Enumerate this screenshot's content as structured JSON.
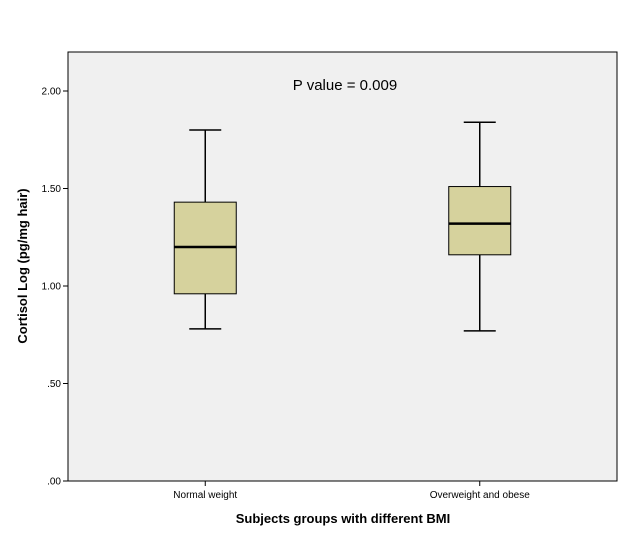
{
  "chart_data": {
    "type": "boxplot",
    "annotation": "P value = 0.009",
    "xlabel": "Subjects groups with different BMI",
    "ylabel": "Cortisol Log (pg/mg hair)",
    "ylim": [
      0,
      2.2
    ],
    "yticks": [
      0,
      0.5,
      1.0,
      1.5,
      2.0
    ],
    "ytick_labels": [
      ".00",
      ".50",
      "1.00",
      "1.50",
      "2.00"
    ],
    "categories": [
      "Normal weight",
      "Overweight and obese"
    ],
    "boxes": [
      {
        "min": 0.78,
        "q1": 0.96,
        "median": 1.2,
        "q3": 1.43,
        "max": 1.8
      },
      {
        "min": 0.77,
        "q1": 1.16,
        "median": 1.32,
        "q3": 1.51,
        "max": 1.84
      }
    ],
    "grid": false,
    "colors": {
      "plot_background": "#f0f0f0",
      "box_fill": "#d6d29d",
      "line": "#000000"
    }
  }
}
